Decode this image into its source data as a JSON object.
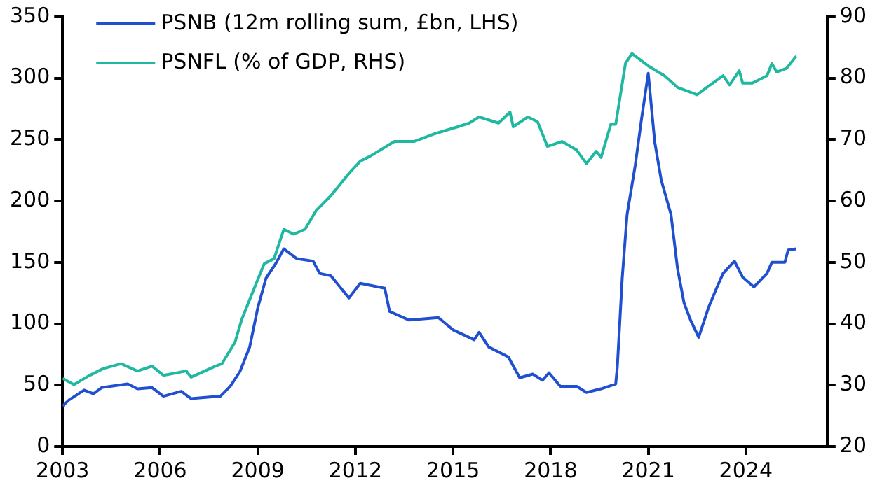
{
  "chart_data": {
    "type": "line",
    "legend": "top left",
    "grid": false,
    "xlim": [
      2003,
      2026.5
    ],
    "xticks": [
      2003,
      2006,
      2009,
      2012,
      2015,
      2018,
      2021,
      2024
    ],
    "ylim": [
      0,
      350
    ],
    "yticks": [
      0,
      50,
      100,
      150,
      200,
      250,
      300,
      350
    ],
    "y2lim": [
      20,
      90
    ],
    "y2ticks": [
      20,
      30,
      40,
      50,
      60,
      70,
      80,
      90
    ],
    "series": [
      {
        "name": "PSNB (12m rolling sum, £bn, LHS)",
        "color": "#2050d0",
        "x": [
          2003.0,
          2003.2,
          2003.66,
          2003.95,
          2004.2,
          2005.0,
          2005.3,
          2005.75,
          2006.1,
          2006.65,
          2006.95,
          2007.85,
          2008.15,
          2008.45,
          2008.75,
          2009.0,
          2009.25,
          2009.55,
          2009.8,
          2010.2,
          2010.7,
          2010.9,
          2011.25,
          2011.8,
          2012.15,
          2012.9,
          2013.05,
          2013.65,
          2014.55,
          2015.0,
          2015.65,
          2015.8,
          2016.1,
          2016.7,
          2017.05,
          2017.45,
          2017.75,
          2017.95,
          2018.3,
          2018.8,
          2019.1,
          2019.55,
          2020.0,
          2020.05,
          2020.2,
          2020.35,
          2020.6,
          2020.8,
          2021.0,
          2021.2,
          2021.4,
          2021.7,
          2021.9,
          2022.1,
          2022.3,
          2022.55,
          2022.85,
          2023.1,
          2023.3,
          2023.65,
          2023.9,
          2024.25,
          2024.65,
          2024.8,
          2025.2,
          2025.3,
          2025.55
        ],
        "values": [
          33,
          38,
          46,
          43,
          48,
          51,
          47,
          48,
          41,
          45,
          39,
          41,
          49,
          61,
          81,
          113,
          137,
          149,
          161,
          153,
          151,
          141,
          139,
          121,
          133,
          129,
          110,
          103,
          105,
          95,
          87,
          93,
          81,
          73,
          56,
          59,
          54,
          60,
          49,
          49,
          44,
          47,
          51,
          65,
          137,
          189,
          229,
          268,
          304,
          248,
          217,
          189,
          145,
          117,
          103,
          89,
          113,
          129,
          141,
          151,
          138,
          130,
          141,
          150,
          150,
          160,
          161
        ]
      },
      {
        "name": "PSNFL (% of GDP, RHS)",
        "color": "#20b8a0",
        "axis": "y2",
        "x": [
          2003.0,
          2003.35,
          2003.8,
          2004.25,
          2004.8,
          2005.3,
          2005.75,
          2006.1,
          2006.8,
          2006.95,
          2007.7,
          2007.9,
          2008.3,
          2008.5,
          2008.8,
          2009.2,
          2009.5,
          2009.8,
          2010.1,
          2010.45,
          2010.8,
          2011.25,
          2011.8,
          2012.15,
          2012.45,
          2013.2,
          2013.8,
          2014.4,
          2015.15,
          2015.5,
          2015.8,
          2016.4,
          2016.75,
          2016.85,
          2017.3,
          2017.6,
          2017.9,
          2018.35,
          2018.8,
          2019.1,
          2019.4,
          2019.55,
          2019.85,
          2020.0,
          2020.3,
          2020.5,
          2020.8,
          2021.0,
          2021.5,
          2021.9,
          2022.5,
          2022.8,
          2023.3,
          2023.5,
          2023.8,
          2023.9,
          2024.2,
          2024.65,
          2024.8,
          2024.95,
          2025.25,
          2025.55
        ],
        "values": [
          31.1,
          30.1,
          31.5,
          32.7,
          33.5,
          32.3,
          33.1,
          31.6,
          32.3,
          31.3,
          33.1,
          33.5,
          37.0,
          40.6,
          44.6,
          49.8,
          50.6,
          55.4,
          54.6,
          55.4,
          58.5,
          60.9,
          64.5,
          66.5,
          67.3,
          69.7,
          69.7,
          70.9,
          72.1,
          72.7,
          73.7,
          72.7,
          74.5,
          72.1,
          73.7,
          72.9,
          68.9,
          69.7,
          68.3,
          66.1,
          68.1,
          67.1,
          72.5,
          72.5,
          82.4,
          84.0,
          82.8,
          82.0,
          80.4,
          78.5,
          77.3,
          78.5,
          80.4,
          78.9,
          81.2,
          79.2,
          79.2,
          80.4,
          82.4,
          81.0,
          81.6,
          83.6
        ]
      }
    ]
  }
}
